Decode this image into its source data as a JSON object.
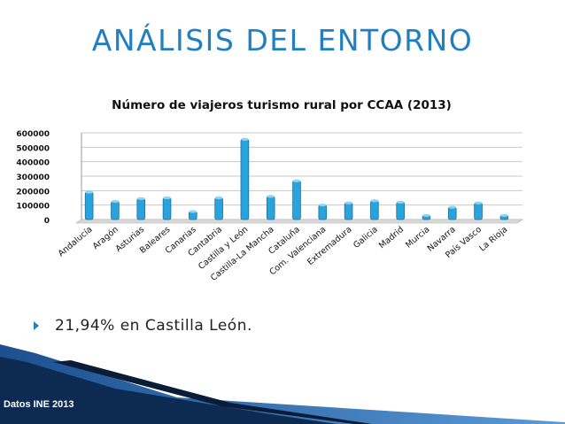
{
  "slide": {
    "title": "ANÁLISIS DEL ENTORNO",
    "bullet": "21,94% en Castilla León.",
    "source": "Datos INE 2013"
  },
  "colors": {
    "title": "#1f7fc1",
    "bar_fill": "#29a3dc",
    "bar_stroke": "#1b6fa0",
    "footer_dark": "#0d2a52",
    "footer_light": "#3a7cc4"
  },
  "chart_data": {
    "type": "bar",
    "title": "Número de viajeros turismo rural por CCAA (2013)",
    "xlabel": "",
    "ylabel": "",
    "ylim": [
      0,
      600000
    ],
    "yticks": [
      0,
      100000,
      200000,
      300000,
      400000,
      500000,
      600000
    ],
    "ytick_labels": [
      "0",
      "100000",
      "200000",
      "300000",
      "400000",
      "500000",
      "600000"
    ],
    "grid": true,
    "categories": [
      "Andalucía",
      "Aragón",
      "Asturias",
      "Baleares",
      "Canarias",
      "Cantabria",
      "Castilla y León",
      "Castilla-La Mancha",
      "Cataluña",
      "Com. Valenciana",
      "Extremadura",
      "Galicia",
      "Madrid",
      "Murcia",
      "Navarra",
      "País Vasco",
      "La Rioja"
    ],
    "values": [
      190000,
      125000,
      145000,
      150000,
      55000,
      150000,
      555000,
      160000,
      268000,
      100000,
      115000,
      130000,
      120000,
      28000,
      85000,
      115000,
      28000
    ]
  }
}
